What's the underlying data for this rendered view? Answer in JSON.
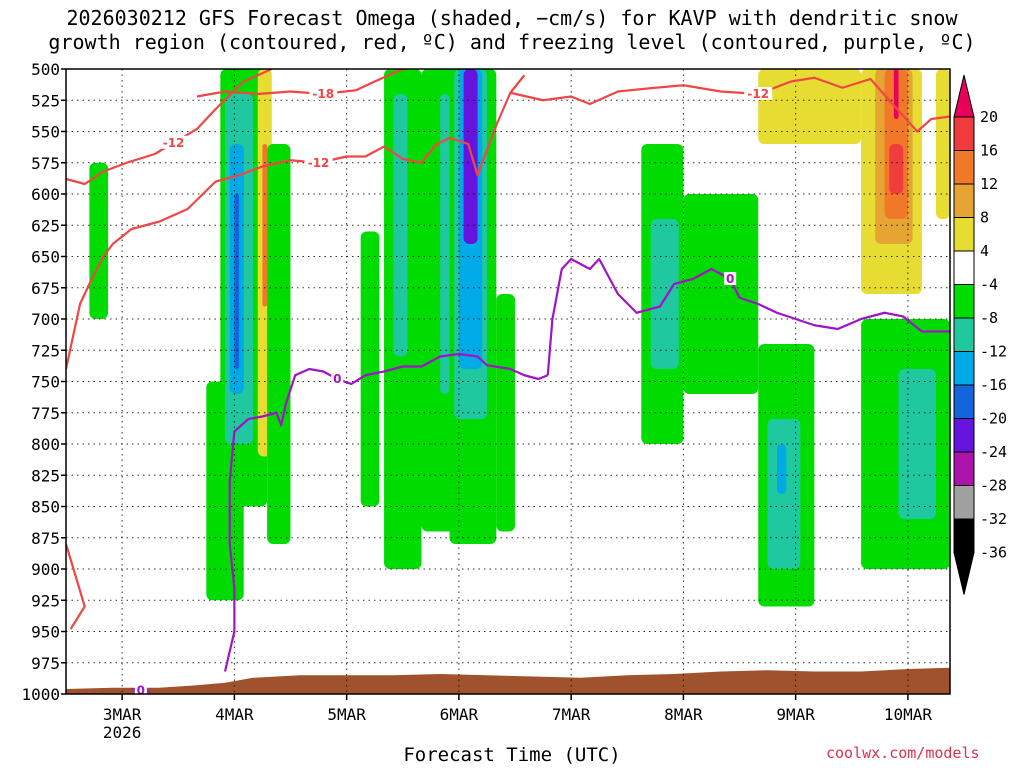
{
  "title_line1": "2026030212 GFS Forecast Omega (shaded, −cm/s) for KAVP with dendritic snow",
  "title_line2": "growth region (contoured, red, ºC) and freezing level (contoured, purple, ºC)",
  "credit": "coolwx.com/models",
  "chart_data": {
    "type": "heatmap",
    "title": "2026030212 GFS Forecast Omega (shaded, −cm/s) for KAVP with dendritic snow growth region (contoured, red, ºC) and freezing level (contoured, purple, ºC)",
    "xlabel": "Forecast Time (UTC)",
    "ylabel": "",
    "x_unit": "hours since 2026-03-02 12Z",
    "xlim": [
      0,
      189
    ],
    "ylim": [
      1000,
      500
    ],
    "grid": true,
    "y_ticks": [
      500,
      525,
      550,
      575,
      600,
      625,
      650,
      675,
      700,
      725,
      750,
      775,
      800,
      825,
      850,
      875,
      900,
      925,
      950,
      975,
      1000
    ],
    "x_ticks": [
      {
        "hour": 12,
        "label": "3MAR",
        "sub": "2026"
      },
      {
        "hour": 36,
        "label": "4MAR",
        "sub": ""
      },
      {
        "hour": 60,
        "label": "5MAR",
        "sub": ""
      },
      {
        "hour": 84,
        "label": "6MAR",
        "sub": ""
      },
      {
        "hour": 108,
        "label": "7MAR",
        "sub": ""
      },
      {
        "hour": 132,
        "label": "8MAR",
        "sub": ""
      },
      {
        "hour": 156,
        "label": "9MAR",
        "sub": ""
      },
      {
        "hour": 180,
        "label": "10MAR",
        "sub": ""
      }
    ],
    "colorbar": {
      "labels": [
        20,
        16,
        12,
        8,
        4,
        -4,
        -8,
        -12,
        -16,
        -20,
        -24,
        -28,
        -32,
        -36
      ],
      "colors": [
        "#e8005a",
        "#f03c3c",
        "#f07828",
        "#e6a532",
        "#e6dc32",
        "#ffffff",
        "#00dc00",
        "#20c8a0",
        "#00aae6",
        "#1464dc",
        "#6414dc",
        "#aa14aa",
        "#a0a0a0",
        "#000000"
      ]
    },
    "omega_regions": [
      {
        "value": -8,
        "x0": 5,
        "x1": 9,
        "p0": 575,
        "p1": 700
      },
      {
        "value": -8,
        "x0": 30,
        "x1": 38,
        "p0": 750,
        "p1": 925
      },
      {
        "value": -8,
        "x0": 33,
        "x1": 43,
        "p0": 500,
        "p1": 850
      },
      {
        "value": -12,
        "x0": 34,
        "x1": 40,
        "p0": 520,
        "p1": 800
      },
      {
        "value": -16,
        "x0": 35,
        "x1": 38,
        "p0": 560,
        "p1": 760
      },
      {
        "value": -20,
        "x0": 36,
        "x1": 37,
        "p0": 600,
        "p1": 740
      },
      {
        "value": 4,
        "x0": 41,
        "x1": 44,
        "p0": 500,
        "p1": 810
      },
      {
        "value": 12,
        "x0": 42,
        "x1": 43,
        "p0": 560,
        "p1": 690
      },
      {
        "value": -8,
        "x0": 43,
        "x1": 48,
        "p0": 560,
        "p1": 880
      },
      {
        "value": -8,
        "x0": 63,
        "x1": 67,
        "p0": 630,
        "p1": 850
      },
      {
        "value": 4,
        "x0": 68,
        "x1": 70,
        "p0": 580,
        "p1": 760
      },
      {
        "value": -8,
        "x0": 68,
        "x1": 76,
        "p0": 500,
        "p1": 900
      },
      {
        "value": -12,
        "x0": 70,
        "x1": 73,
        "p0": 520,
        "p1": 730
      },
      {
        "value": -8,
        "x0": 76,
        "x1": 84,
        "p0": 500,
        "p1": 870
      },
      {
        "value": -12,
        "x0": 80,
        "x1": 82,
        "p0": 520,
        "p1": 760
      },
      {
        "value": -8,
        "x0": 82,
        "x1": 92,
        "p0": 500,
        "p1": 880
      },
      {
        "value": -12,
        "x0": 83,
        "x1": 90,
        "p0": 500,
        "p1": 780
      },
      {
        "value": -16,
        "x0": 84,
        "x1": 89,
        "p0": 500,
        "p1": 740
      },
      {
        "value": -24,
        "x0": 85,
        "x1": 88,
        "p0": 500,
        "p1": 640
      },
      {
        "value": -8,
        "x0": 92,
        "x1": 96,
        "p0": 680,
        "p1": 870
      },
      {
        "value": -8,
        "x0": 123,
        "x1": 132,
        "p0": 560,
        "p1": 800
      },
      {
        "value": -12,
        "x0": 125,
        "x1": 131,
        "p0": 620,
        "p1": 740
      },
      {
        "value": -8,
        "x0": 132,
        "x1": 148,
        "p0": 600,
        "p1": 760
      },
      {
        "value": -8,
        "x0": 148,
        "x1": 160,
        "p0": 720,
        "p1": 930
      },
      {
        "value": -12,
        "x0": 150,
        "x1": 157,
        "p0": 780,
        "p1": 900
      },
      {
        "value": -16,
        "x0": 152,
        "x1": 154,
        "p0": 800,
        "p1": 840
      },
      {
        "value": 4,
        "x0": 148,
        "x1": 170,
        "p0": 500,
        "p1": 560
      },
      {
        "value": 4,
        "x0": 170,
        "x1": 183,
        "p0": 500,
        "p1": 680
      },
      {
        "value": 8,
        "x0": 173,
        "x1": 181,
        "p0": 500,
        "p1": 640
      },
      {
        "value": 12,
        "x0": 175,
        "x1": 180,
        "p0": 500,
        "p1": 620
      },
      {
        "value": 16,
        "x0": 176,
        "x1": 179,
        "p0": 560,
        "p1": 600
      },
      {
        "value": 20,
        "x0": 177,
        "x1": 178,
        "p0": 500,
        "p1": 540
      },
      {
        "value": -8,
        "x0": 170,
        "x1": 189,
        "p0": 700,
        "p1": 900
      },
      {
        "value": -12,
        "x0": 178,
        "x1": 186,
        "p0": 740,
        "p1": 860
      },
      {
        "value": 4,
        "x0": 186,
        "x1": 189,
        "p0": 500,
        "p1": 620
      }
    ],
    "red_contours": [
      {
        "label": "-12",
        "points": [
          [
            0,
            588
          ],
          [
            4,
            592
          ],
          [
            8,
            582
          ],
          [
            13,
            575
          ],
          [
            19,
            568
          ],
          [
            23,
            559
          ],
          [
            28,
            548
          ],
          [
            32,
            532
          ],
          [
            38,
            510
          ],
          [
            44,
            500
          ]
        ]
      },
      {
        "label": "-18",
        "points": [
          [
            28,
            522
          ],
          [
            34,
            518
          ],
          [
            41,
            520
          ],
          [
            48,
            518
          ],
          [
            55,
            520
          ],
          [
            62,
            517
          ],
          [
            66,
            510
          ],
          [
            72,
            500
          ]
        ]
      },
      {
        "label": "-12",
        "points": [
          [
            0,
            740
          ],
          [
            3,
            688
          ],
          [
            5,
            672
          ],
          [
            8,
            650
          ],
          [
            10,
            640
          ],
          [
            14,
            628
          ],
          [
            20,
            622
          ],
          [
            26,
            612
          ],
          [
            32,
            590
          ],
          [
            37,
            585
          ],
          [
            42,
            578
          ],
          [
            48,
            573
          ],
          [
            54,
            575
          ],
          [
            60,
            570
          ],
          [
            64,
            570
          ],
          [
            68,
            562
          ],
          [
            72,
            572
          ],
          [
            76,
            575
          ],
          [
            79,
            561
          ],
          [
            82,
            555
          ],
          [
            86,
            560
          ],
          [
            88,
            585
          ],
          [
            92,
            545
          ],
          [
            95,
            519
          ],
          [
            98,
            505
          ]
        ]
      },
      {
        "label": "-12",
        "points": [
          [
            95,
            519
          ],
          [
            102,
            525
          ],
          [
            108,
            522
          ],
          [
            112,
            528
          ],
          [
            118,
            518
          ],
          [
            126,
            515
          ],
          [
            132,
            513
          ],
          [
            140,
            518
          ],
          [
            148,
            520
          ],
          [
            155,
            510
          ],
          [
            160,
            507
          ],
          [
            166,
            515
          ],
          [
            172,
            508
          ],
          [
            176,
            525
          ],
          [
            182,
            550
          ],
          [
            185,
            540
          ],
          [
            189,
            538
          ]
        ]
      },
      {
        "label": "",
        "points": [
          [
            0,
            880
          ],
          [
            2,
            905
          ],
          [
            4,
            930
          ],
          [
            1,
            948
          ]
        ]
      }
    ],
    "purple_contours": [
      {
        "label": "0",
        "points": [
          [
            14,
            996
          ],
          [
            16,
            997
          ],
          [
            18,
            998
          ]
        ]
      },
      {
        "label": "0",
        "points": [
          [
            34,
            982
          ],
          [
            36,
            950
          ],
          [
            36,
            915
          ],
          [
            35,
            880
          ],
          [
            35,
            830
          ],
          [
            36,
            790
          ],
          [
            39,
            780
          ],
          [
            42,
            778
          ],
          [
            45,
            775
          ],
          [
            46,
            785
          ],
          [
            47,
            768
          ],
          [
            49,
            745
          ],
          [
            52,
            740
          ],
          [
            55,
            742
          ],
          [
            58,
            748
          ],
          [
            61,
            752
          ],
          [
            64,
            745
          ],
          [
            68,
            742
          ],
          [
            72,
            738
          ],
          [
            76,
            738
          ],
          [
            80,
            730
          ],
          [
            84,
            728
          ],
          [
            88,
            730
          ],
          [
            90,
            737
          ],
          [
            95,
            740
          ],
          [
            98,
            745
          ],
          [
            101,
            748
          ],
          [
            103,
            745
          ]
        ]
      },
      {
        "label": "0",
        "points": [
          [
            103,
            745
          ],
          [
            104,
            700
          ],
          [
            106,
            660
          ],
          [
            108,
            652
          ],
          [
            112,
            660
          ],
          [
            114,
            652
          ],
          [
            118,
            680
          ],
          [
            122,
            695
          ],
          [
            127,
            690
          ],
          [
            130,
            672
          ],
          [
            134,
            668
          ],
          [
            138,
            660
          ],
          [
            142,
            668
          ],
          [
            144,
            683
          ],
          [
            148,
            688
          ],
          [
            152,
            695
          ],
          [
            156,
            700
          ],
          [
            160,
            705
          ],
          [
            165,
            708
          ],
          [
            170,
            700
          ],
          [
            175,
            695
          ],
          [
            179,
            698
          ],
          [
            183,
            710
          ],
          [
            189,
            710
          ]
        ]
      }
    ],
    "terrain": {
      "color": "#a0522d",
      "points": [
        [
          0,
          996
        ],
        [
          10,
          995
        ],
        [
          20,
          995
        ],
        [
          28,
          993
        ],
        [
          34,
          991
        ],
        [
          40,
          987
        ],
        [
          50,
          985
        ],
        [
          60,
          985
        ],
        [
          70,
          985
        ],
        [
          80,
          984
        ],
        [
          90,
          985
        ],
        [
          100,
          986
        ],
        [
          110,
          987
        ],
        [
          120,
          985
        ],
        [
          130,
          984
        ],
        [
          140,
          982
        ],
        [
          150,
          981
        ],
        [
          160,
          982
        ],
        [
          170,
          982
        ],
        [
          180,
          980
        ],
        [
          189,
          979
        ]
      ]
    }
  }
}
